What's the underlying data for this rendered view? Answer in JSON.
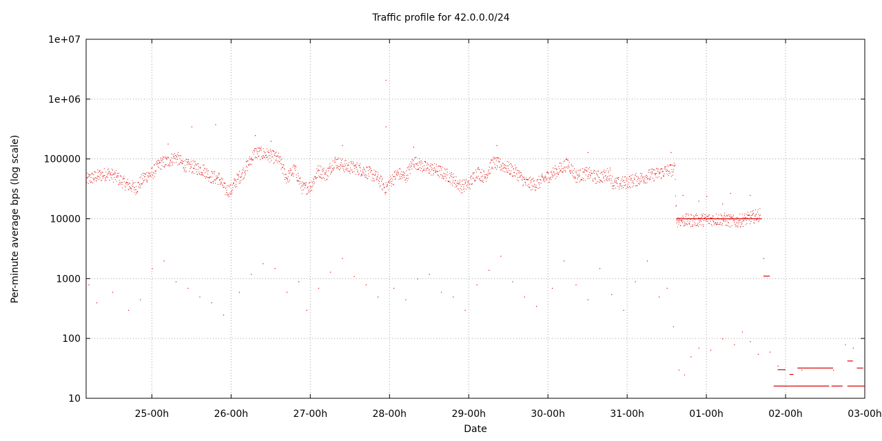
{
  "chart_data": {
    "type": "scatter",
    "title": "Traffic profile for 42.0.0.0/24",
    "xlabel": "Date",
    "ylabel": "Per-minute average bps (log scale)",
    "y_scale": "log",
    "ylim": [
      10,
      10000000
    ],
    "y_ticks": [
      "10",
      "100",
      "1000",
      "10000",
      "100000",
      "1e+06",
      "1e+07"
    ],
    "x_ticks": [
      "25-00h",
      "26-00h",
      "27-00h",
      "28-00h",
      "29-00h",
      "30-00h",
      "31-00h",
      "01-00h",
      "02-00h",
      "03-00h"
    ],
    "x_unit": "days",
    "xlim": [
      24.17,
      34.0
    ],
    "grid": true,
    "color": "#dd0000",
    "series": [
      {
        "role": "main traffic band",
        "points": [
          [
            24.17,
            45000
          ],
          [
            24.3,
            52000
          ],
          [
            24.45,
            58000
          ],
          [
            24.55,
            50000
          ],
          [
            24.67,
            38000
          ],
          [
            24.8,
            33000
          ],
          [
            24.9,
            50000
          ],
          [
            25.0,
            58000
          ],
          [
            25.1,
            85000
          ],
          [
            25.2,
            92000
          ],
          [
            25.3,
            110000
          ],
          [
            25.4,
            80000
          ],
          [
            25.55,
            72000
          ],
          [
            25.65,
            66000
          ],
          [
            25.75,
            50000
          ],
          [
            25.85,
            48000
          ],
          [
            25.92,
            31000
          ],
          [
            26.0,
            30000
          ],
          [
            26.05,
            42000
          ],
          [
            26.15,
            60000
          ],
          [
            26.3,
            130000
          ],
          [
            26.45,
            120000
          ],
          [
            26.6,
            100000
          ],
          [
            26.7,
            48000
          ],
          [
            26.8,
            68000
          ],
          [
            26.9,
            32000
          ],
          [
            27.0,
            35000
          ],
          [
            27.1,
            65000
          ],
          [
            27.2,
            55000
          ],
          [
            27.3,
            92000
          ],
          [
            27.45,
            75000
          ],
          [
            27.6,
            70000
          ],
          [
            27.75,
            58000
          ],
          [
            27.85,
            48000
          ],
          [
            27.95,
            32000
          ],
          [
            28.0,
            42000
          ],
          [
            28.1,
            58000
          ],
          [
            28.2,
            50000
          ],
          [
            28.3,
            92000
          ],
          [
            28.45,
            72000
          ],
          [
            28.6,
            65000
          ],
          [
            28.75,
            52000
          ],
          [
            28.9,
            35000
          ],
          [
            29.0,
            38000
          ],
          [
            29.1,
            62000
          ],
          [
            29.2,
            50000
          ],
          [
            29.3,
            88000
          ],
          [
            29.45,
            76000
          ],
          [
            29.6,
            60000
          ],
          [
            29.72,
            40000
          ],
          [
            29.85,
            38000
          ],
          [
            30.0,
            52000
          ],
          [
            30.1,
            62000
          ],
          [
            30.25,
            85000
          ],
          [
            30.35,
            52000
          ],
          [
            30.5,
            58000
          ],
          [
            30.6,
            50000
          ],
          [
            30.7,
            52000
          ],
          [
            30.78,
            58000
          ],
          [
            30.82,
            38000
          ],
          [
            30.95,
            40000
          ],
          [
            31.1,
            45000
          ],
          [
            31.25,
            52000
          ],
          [
            31.4,
            58000
          ],
          [
            31.5,
            65000
          ],
          [
            31.6,
            68000
          ],
          [
            31.62,
            9500
          ],
          [
            31.8,
            9500
          ],
          [
            32.0,
            9800
          ],
          [
            32.2,
            10000
          ],
          [
            32.35,
            9000
          ],
          [
            32.5,
            10000
          ],
          [
            32.6,
            11000
          ],
          [
            32.68,
            12000
          ]
        ]
      },
      {
        "role": "upper outliers",
        "points": [
          [
            25.5,
            350000
          ],
          [
            25.8,
            380000
          ],
          [
            27.95,
            2100000
          ],
          [
            27.95,
            350000
          ],
          [
            26.3,
            250000
          ],
          [
            25.2,
            180000
          ],
          [
            26.5,
            200000
          ],
          [
            27.4,
            170000
          ],
          [
            28.3,
            160000
          ],
          [
            29.35,
            170000
          ],
          [
            30.5,
            130000
          ],
          [
            31.55,
            130000
          ],
          [
            31.7,
            25000
          ],
          [
            32.0,
            24000
          ],
          [
            32.3,
            27000
          ],
          [
            32.55,
            25000
          ],
          [
            31.9,
            20000
          ],
          [
            32.2,
            18000
          ]
        ]
      },
      {
        "role": "lower scattered points",
        "points": [
          [
            24.2,
            800
          ],
          [
            24.3,
            400
          ],
          [
            24.5,
            600
          ],
          [
            24.7,
            300
          ],
          [
            24.85,
            450
          ],
          [
            25.0,
            1500
          ],
          [
            25.15,
            2000
          ],
          [
            25.3,
            900
          ],
          [
            25.45,
            700
          ],
          [
            25.6,
            500
          ],
          [
            25.75,
            400
          ],
          [
            25.9,
            250
          ],
          [
            26.1,
            600
          ],
          [
            26.25,
            1200
          ],
          [
            26.4,
            1800
          ],
          [
            26.55,
            1500
          ],
          [
            26.7,
            600
          ],
          [
            26.85,
            900
          ],
          [
            26.95,
            300
          ],
          [
            27.1,
            700
          ],
          [
            27.25,
            1300
          ],
          [
            27.4,
            2200
          ],
          [
            27.55,
            1100
          ],
          [
            27.7,
            800
          ],
          [
            27.85,
            500
          ],
          [
            28.05,
            700
          ],
          [
            28.2,
            450
          ],
          [
            28.35,
            1000
          ],
          [
            28.5,
            1200
          ],
          [
            28.65,
            600
          ],
          [
            28.8,
            500
          ],
          [
            28.95,
            300
          ],
          [
            29.1,
            800
          ],
          [
            29.25,
            1400
          ],
          [
            29.4,
            2400
          ],
          [
            29.55,
            900
          ],
          [
            29.7,
            500
          ],
          [
            29.85,
            350
          ],
          [
            30.05,
            700
          ],
          [
            30.2,
            2000
          ],
          [
            30.35,
            800
          ],
          [
            30.5,
            450
          ],
          [
            30.65,
            1500
          ],
          [
            30.8,
            550
          ],
          [
            30.95,
            300
          ],
          [
            31.1,
            900
          ],
          [
            31.25,
            2000
          ],
          [
            31.4,
            500
          ],
          [
            31.5,
            700
          ],
          [
            31.58,
            160
          ],
          [
            31.65,
            30
          ],
          [
            31.72,
            25
          ],
          [
            31.8,
            50
          ],
          [
            31.9,
            70
          ],
          [
            32.05,
            65
          ],
          [
            32.2,
            100
          ],
          [
            32.35,
            80
          ],
          [
            32.45,
            130
          ],
          [
            32.55,
            90
          ],
          [
            32.65,
            55
          ],
          [
            32.72,
            2200
          ],
          [
            32.8,
            60
          ],
          [
            32.9,
            35
          ],
          [
            33.2,
            30
          ],
          [
            33.6,
            30
          ],
          [
            33.75,
            80
          ],
          [
            33.85,
            70
          ]
        ]
      }
    ],
    "level_segments": [
      {
        "x_start": 31.62,
        "x_end": 32.7,
        "y": 10000
      },
      {
        "x_start": 32.72,
        "x_end": 32.8,
        "y": 1100
      },
      {
        "x_start": 32.85,
        "x_end": 33.0,
        "y": 16
      },
      {
        "x_start": 33.0,
        "x_end": 33.1,
        "y": 16
      },
      {
        "x_start": 33.1,
        "x_end": 33.55,
        "y": 16
      },
      {
        "x_start": 33.58,
        "x_end": 33.72,
        "y": 16
      },
      {
        "x_start": 33.78,
        "x_end": 34.0,
        "y": 16
      },
      {
        "x_start": 32.9,
        "x_end": 33.0,
        "y": 30
      },
      {
        "x_start": 33.05,
        "x_end": 33.1,
        "y": 25
      },
      {
        "x_start": 33.15,
        "x_end": 33.35,
        "y": 32
      },
      {
        "x_start": 33.35,
        "x_end": 33.6,
        "y": 32
      },
      {
        "x_start": 33.78,
        "x_end": 33.85,
        "y": 42
      },
      {
        "x_start": 33.9,
        "x_end": 33.98,
        "y": 32
      }
    ]
  }
}
